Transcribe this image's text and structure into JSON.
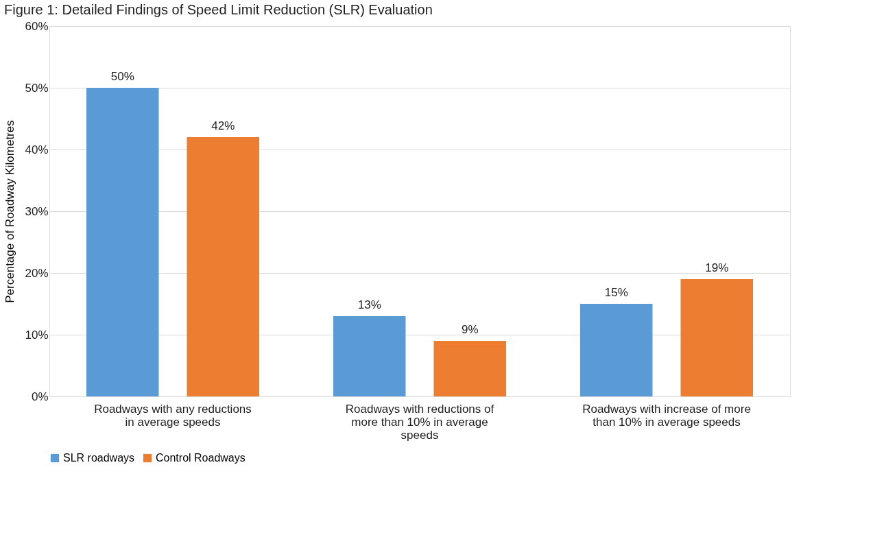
{
  "chart_data": {
    "type": "bar",
    "title": "Figure 1: Detailed Findings of Speed Limit Reduction (SLR) Evaluation",
    "ylabel": "Percentage of Roadway Kilometres",
    "categories": [
      "Roadways with any reductions in average speeds",
      "Roadways with reductions of more than 10% in average speeds",
      "Roadways with increase of more than 10% in average speeds"
    ],
    "series": [
      {
        "name": "SLR roadways",
        "color": "#5b9bd5",
        "values": [
          50,
          13,
          15
        ],
        "value_labels": [
          "50%",
          "13%",
          "15%"
        ]
      },
      {
        "name": "Control Roadways",
        "color": "#ed7d31",
        "values": [
          42,
          9,
          19
        ],
        "value_labels": [
          "42%",
          "9%",
          "19%"
        ]
      }
    ],
    "ylim": [
      0,
      60
    ],
    "yticks": [
      {
        "value": 0,
        "label": "0%"
      },
      {
        "value": 10,
        "label": "10%"
      },
      {
        "value": 20,
        "label": "20%"
      },
      {
        "value": 30,
        "label": "30%"
      },
      {
        "value": 40,
        "label": "40%"
      },
      {
        "value": 50,
        "label": "50%"
      },
      {
        "value": 60,
        "label": "60%"
      }
    ],
    "grid": "y",
    "legend": "bottom"
  }
}
